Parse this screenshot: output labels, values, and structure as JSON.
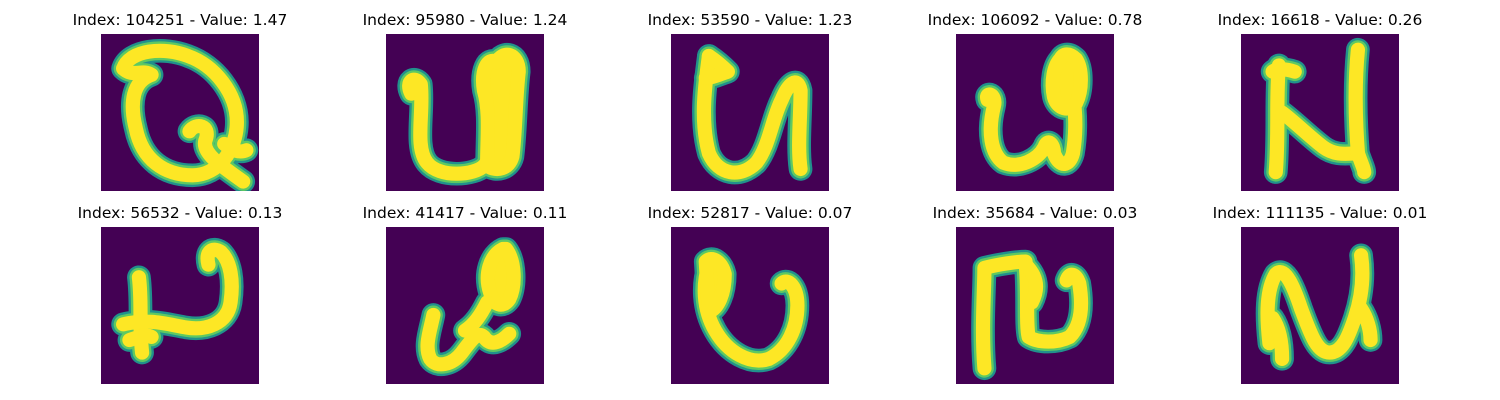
{
  "colors": {
    "background": "#440154",
    "edge": "#21918c",
    "mid": "#5ec962",
    "stroke": "#fde725"
  },
  "panels": [
    {
      "title": "Index: 104251 - Value: 1.47",
      "icon": "handwritten-q-glyph"
    },
    {
      "title": "Index: 95980 - Value: 1.24",
      "icon": "handwritten-u-glyph"
    },
    {
      "title": "Index: 53590 - Value: 1.23",
      "icon": "handwritten-u-glyph"
    },
    {
      "title": "Index: 106092 - Value: 0.78",
      "icon": "handwritten-u-glyph"
    },
    {
      "title": "Index: 16618 - Value: 0.26",
      "icon": "handwritten-n-glyph"
    },
    {
      "title": "Index: 56532 - Value: 0.13",
      "icon": "handwritten-u-glyph"
    },
    {
      "title": "Index: 41417 - Value: 0.11",
      "icon": "handwritten-u-glyph"
    },
    {
      "title": "Index: 52817 - Value: 0.07",
      "icon": "handwritten-u-glyph"
    },
    {
      "title": "Index: 35684 - Value: 0.03",
      "icon": "handwritten-n-glyph"
    },
    {
      "title": "Index: 111135 - Value: 0.01",
      "icon": "handwritten-n-glyph"
    }
  ]
}
